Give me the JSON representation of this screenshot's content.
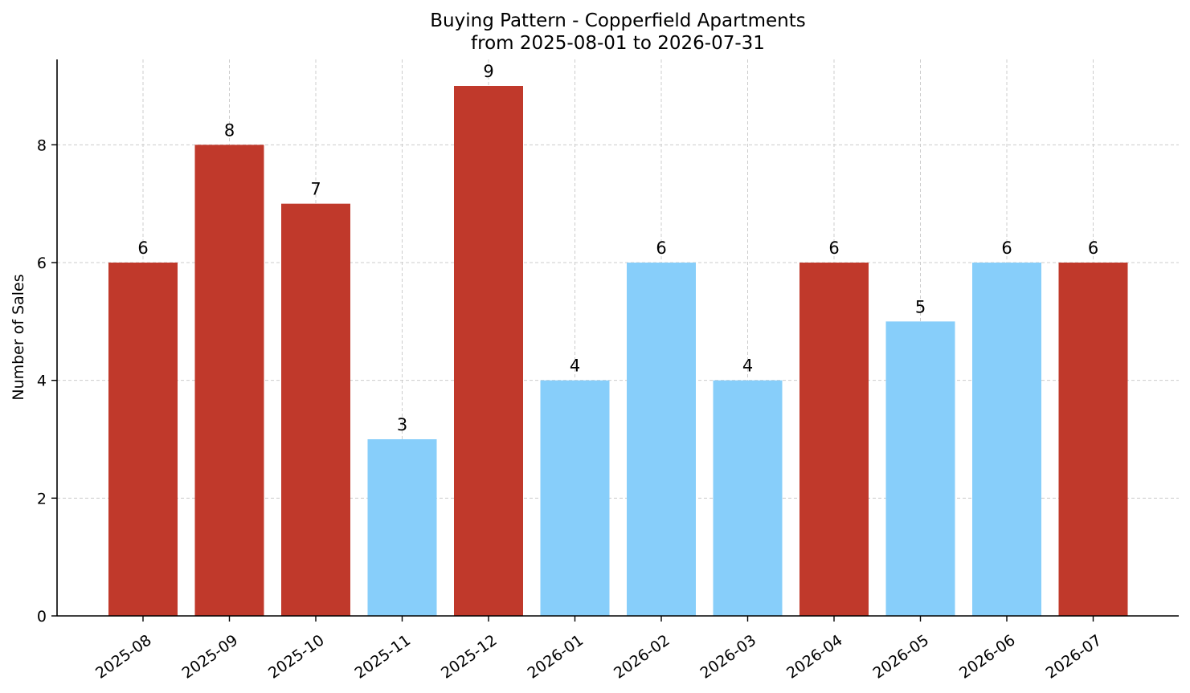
{
  "chart_data": {
    "type": "bar",
    "title": "Buying Pattern - Copperfield Apartments",
    "subtitle": "from 2025-08-01 to 2026-07-31",
    "xlabel": "",
    "ylabel": "Number of Sales",
    "categories": [
      "2025-08",
      "2025-09",
      "2025-10",
      "2025-11",
      "2025-12",
      "2026-01",
      "2026-02",
      "2026-03",
      "2026-04",
      "2026-05",
      "2026-06",
      "2026-07"
    ],
    "values": [
      6,
      8,
      7,
      3,
      9,
      4,
      6,
      4,
      6,
      5,
      6,
      6
    ],
    "highlight": [
      true,
      true,
      true,
      false,
      true,
      false,
      false,
      false,
      true,
      false,
      false,
      true
    ],
    "colors": {
      "high": "#c0392b",
      "low": "#87cefa"
    },
    "ylim": [
      0,
      9.45
    ],
    "yticks": [
      0,
      2,
      4,
      6,
      8
    ],
    "grid": true,
    "legend": "none"
  }
}
